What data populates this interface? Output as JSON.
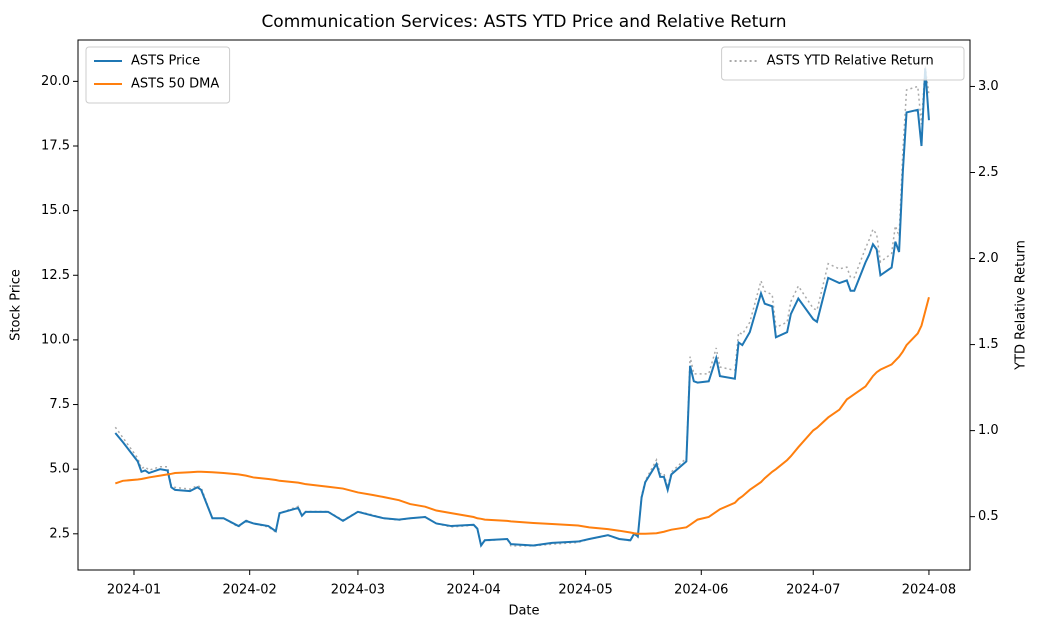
{
  "chart_data": {
    "type": "line",
    "title": "Communication Services: ASTS YTD Price and Relative Return",
    "xlabel": "Date",
    "ylabel": "Stock Price",
    "y2label": "YTD Relative Return",
    "x": [
      "2023-12-27",
      "2023-12-29",
      "2024-01-02",
      "2024-01-03",
      "2024-01-04",
      "2024-01-05",
      "2024-01-08",
      "2024-01-10",
      "2024-01-11",
      "2024-01-12",
      "2024-01-16",
      "2024-01-18",
      "2024-01-19",
      "2024-01-22",
      "2024-01-25",
      "2024-01-29",
      "2024-01-31",
      "2024-02-02",
      "2024-02-06",
      "2024-02-08",
      "2024-02-09",
      "2024-02-14",
      "2024-02-15",
      "2024-02-16",
      "2024-02-22",
      "2024-02-26",
      "2024-03-01",
      "2024-03-05",
      "2024-03-08",
      "2024-03-12",
      "2024-03-15",
      "2024-03-19",
      "2024-03-22",
      "2024-03-26",
      "2024-04-01",
      "2024-04-02",
      "2024-04-03",
      "2024-04-04",
      "2024-04-10",
      "2024-04-11",
      "2024-04-17",
      "2024-04-22",
      "2024-04-29",
      "2024-05-02",
      "2024-05-07",
      "2024-05-10",
      "2024-05-13",
      "2024-05-14",
      "2024-05-15",
      "2024-05-16",
      "2024-05-17",
      "2024-05-20",
      "2024-05-21",
      "2024-05-22",
      "2024-05-23",
      "2024-05-24",
      "2024-05-28",
      "2024-05-29",
      "2024-05-30",
      "2024-05-31",
      "2024-06-03",
      "2024-06-05",
      "2024-06-06",
      "2024-06-10",
      "2024-06-11",
      "2024-06-12",
      "2024-06-14",
      "2024-06-17",
      "2024-06-18",
      "2024-06-20",
      "2024-06-21",
      "2024-06-24",
      "2024-06-25",
      "2024-06-27",
      "2024-07-01",
      "2024-07-02",
      "2024-07-05",
      "2024-07-08",
      "2024-07-10",
      "2024-07-11",
      "2024-07-12",
      "2024-07-15",
      "2024-07-16",
      "2024-07-17",
      "2024-07-18",
      "2024-07-19",
      "2024-07-22",
      "2024-07-23",
      "2024-07-24",
      "2024-07-25",
      "2024-07-26",
      "2024-07-29",
      "2024-07-30",
      "2024-07-31",
      "2024-08-01"
    ],
    "series": [
      {
        "name": "ASTS Price",
        "color": "#1f77b4",
        "linestyle": "solid",
        "axis": "y",
        "values": [
          6.4,
          6.05,
          5.3,
          4.9,
          4.95,
          4.85,
          5.0,
          4.95,
          4.3,
          4.2,
          4.15,
          4.3,
          4.2,
          3.1,
          3.1,
          2.8,
          3.0,
          2.9,
          2.8,
          2.6,
          3.3,
          3.5,
          3.2,
          3.35,
          3.35,
          3.0,
          3.35,
          3.2,
          3.1,
          3.05,
          3.1,
          3.15,
          2.9,
          2.8,
          2.85,
          2.7,
          2.05,
          2.25,
          2.3,
          2.1,
          2.05,
          2.15,
          2.2,
          2.3,
          2.45,
          2.3,
          2.25,
          2.5,
          2.4,
          3.9,
          4.5,
          5.2,
          4.7,
          4.7,
          4.2,
          4.8,
          5.3,
          9.0,
          8.4,
          8.35,
          8.4,
          9.3,
          8.6,
          8.5,
          9.9,
          9.8,
          10.3,
          11.8,
          11.4,
          11.3,
          10.1,
          10.3,
          11.0,
          11.6,
          10.8,
          10.7,
          12.4,
          12.2,
          12.3,
          11.9,
          11.9,
          13.0,
          13.3,
          13.7,
          13.5,
          12.5,
          12.8,
          13.8,
          13.4,
          16.5,
          18.8,
          18.9,
          17.5,
          20.5,
          18.5
        ]
      },
      {
        "name": "ASTS 50 DMA",
        "color": "#ff7f0e",
        "linestyle": "solid",
        "axis": "y",
        "values": [
          4.45,
          4.55,
          4.6,
          4.62,
          4.65,
          4.68,
          4.75,
          4.8,
          4.82,
          4.85,
          4.88,
          4.9,
          4.9,
          4.88,
          4.85,
          4.8,
          4.75,
          4.68,
          4.62,
          4.58,
          4.55,
          4.48,
          4.45,
          4.42,
          4.32,
          4.25,
          4.1,
          4.0,
          3.92,
          3.8,
          3.65,
          3.55,
          3.4,
          3.3,
          3.15,
          3.1,
          3.08,
          3.05,
          3.0,
          2.98,
          2.92,
          2.88,
          2.82,
          2.75,
          2.68,
          2.62,
          2.55,
          2.52,
          2.5,
          2.5,
          2.5,
          2.52,
          2.55,
          2.58,
          2.62,
          2.66,
          2.75,
          2.85,
          2.95,
          3.05,
          3.15,
          3.35,
          3.45,
          3.7,
          3.85,
          3.95,
          4.2,
          4.5,
          4.65,
          4.9,
          5.0,
          5.35,
          5.5,
          5.85,
          6.5,
          6.6,
          7.0,
          7.3,
          7.7,
          7.8,
          7.9,
          8.2,
          8.4,
          8.6,
          8.75,
          8.85,
          9.05,
          9.2,
          9.35,
          9.55,
          9.8,
          10.25,
          10.55,
          11.1,
          11.65
        ]
      },
      {
        "name": "ASTS YTD Relative Return",
        "color": "#aaaaaa",
        "linestyle": "dotted",
        "axis": "y2",
        "values": [
          1.02,
          0.96,
          0.84,
          0.78,
          0.79,
          0.77,
          0.79,
          0.79,
          0.68,
          0.67,
          0.66,
          0.68,
          0.67,
          0.49,
          0.49,
          0.44,
          0.48,
          0.46,
          0.44,
          0.41,
          0.52,
          0.56,
          0.51,
          0.53,
          0.53,
          0.48,
          0.53,
          0.51,
          0.49,
          0.48,
          0.49,
          0.5,
          0.46,
          0.44,
          0.45,
          0.43,
          0.33,
          0.36,
          0.37,
          0.33,
          0.33,
          0.34,
          0.35,
          0.37,
          0.39,
          0.37,
          0.36,
          0.4,
          0.38,
          0.62,
          0.71,
          0.83,
          0.75,
          0.75,
          0.67,
          0.76,
          0.84,
          1.43,
          1.33,
          1.33,
          1.33,
          1.48,
          1.37,
          1.35,
          1.57,
          1.56,
          1.63,
          1.87,
          1.81,
          1.79,
          1.6,
          1.63,
          1.75,
          1.84,
          1.71,
          1.7,
          1.97,
          1.94,
          1.95,
          1.89,
          1.89,
          2.06,
          2.11,
          2.17,
          2.14,
          1.98,
          2.03,
          2.19,
          2.13,
          2.62,
          2.98,
          3.0,
          2.78,
          3.12,
          2.95
        ]
      }
    ],
    "xlim": [
      "2023-12-17",
      "2024-08-12"
    ],
    "xticks": [
      {
        "value": "2024-01-01",
        "label": "2024-01"
      },
      {
        "value": "2024-02-01",
        "label": "2024-02"
      },
      {
        "value": "2024-03-01",
        "label": "2024-03"
      },
      {
        "value": "2024-04-01",
        "label": "2024-04"
      },
      {
        "value": "2024-05-01",
        "label": "2024-05"
      },
      {
        "value": "2024-06-01",
        "label": "2024-06"
      },
      {
        "value": "2024-07-01",
        "label": "2024-07"
      },
      {
        "value": "2024-08-01",
        "label": "2024-08"
      }
    ],
    "ylim": [
      1.1,
      21.6
    ],
    "yticks": [
      2.5,
      {
        "value": 5,
        "label": "5.0"
      },
      7.5,
      {
        "value": 10,
        "label": "10.0"
      },
      12.5,
      {
        "value": 15,
        "label": "15.0"
      },
      17.5,
      {
        "value": 20,
        "label": "20.0"
      }
    ],
    "y2lim": [
      0.19,
      3.27
    ],
    "y2ticks": [
      0.5,
      {
        "value": 1,
        "label": "1.0"
      },
      1.5,
      {
        "value": 2,
        "label": "2.0"
      },
      2.5,
      {
        "value": 3,
        "label": "3.0"
      }
    ],
    "grid": false,
    "legend": "upper left",
    "y2_legend": "upper right"
  }
}
